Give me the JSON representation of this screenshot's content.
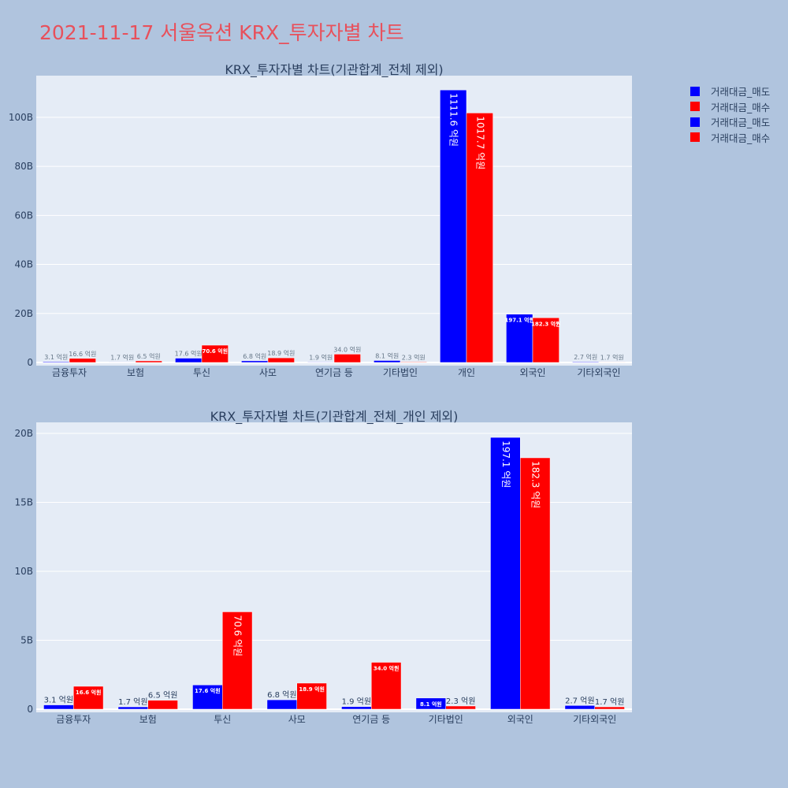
{
  "page": {
    "title": "2021-11-17 서울옥션 KRX_투자자별 차트"
  },
  "legend": {
    "items": [
      {
        "label": "거래대금_매도",
        "color": "#0000ff"
      },
      {
        "label": "거래대금_매수",
        "color": "#ff0000"
      },
      {
        "label": "거래대금_매도",
        "color": "#0000ff"
      },
      {
        "label": "거래대금_매수",
        "color": "#ff0000"
      }
    ]
  },
  "chart_data": [
    {
      "type": "bar",
      "title": "KRX_투자자별 차트(기관합계_전체 제외)",
      "categories": [
        "금융투자",
        "보험",
        "투신",
        "사모",
        "연기금 등",
        "기타법인",
        "개인",
        "외국인",
        "기타외국인"
      ],
      "series": [
        {
          "name": "거래대금_매도",
          "color": "#0000ff",
          "values": [
            0.31,
            0.17,
            1.76,
            0.68,
            0.19,
            0.81,
            111.16,
            19.71,
            0.27
          ],
          "labels": [
            "3.1 억원",
            "1.7 억원",
            "17.6 억원",
            "6.8 억원",
            "1.9 억원",
            "8.1 억원",
            "1111.6 억원",
            "197.1 억원",
            "2.7 억원"
          ]
        },
        {
          "name": "거래대금_매수",
          "color": "#ff0000",
          "values": [
            1.66,
            0.65,
            7.06,
            1.89,
            3.4,
            0.23,
            101.77,
            18.23,
            0.17
          ],
          "labels": [
            "16.6 억원",
            "6.5 억원",
            "70.6 억원",
            "18.9 억원",
            "34.0 억원",
            "2.3 억원",
            "1017.7 억원",
            "182.3 억원",
            "1.7 억원"
          ]
        }
      ],
      "yticks": [
        0,
        20,
        40,
        60,
        80,
        100
      ],
      "ytick_labels": [
        "0",
        "20B",
        "40B",
        "60B",
        "80B",
        "100B"
      ],
      "ylim": [
        0,
        117
      ],
      "grid": true
    },
    {
      "type": "bar",
      "title": "KRX_투자자별 차트(기관합계_전체_개인 제외)",
      "categories": [
        "금융투자",
        "보험",
        "투신",
        "사모",
        "연기금 등",
        "기타법인",
        "외국인",
        "기타외국인"
      ],
      "series": [
        {
          "name": "거래대금_매도",
          "color": "#0000ff",
          "values": [
            0.31,
            0.17,
            1.76,
            0.68,
            0.19,
            0.81,
            19.71,
            0.27
          ],
          "labels": [
            "3.1 억원",
            "1.7 억원",
            "17.6 억원",
            "6.8 억원",
            "1.9 억원",
            "8.1 억원",
            "197.1 억원",
            "2.7 억원"
          ]
        },
        {
          "name": "거래대금_매수",
          "color": "#ff0000",
          "values": [
            1.66,
            0.65,
            7.06,
            1.89,
            3.4,
            0.23,
            18.23,
            0.17
          ],
          "labels": [
            "16.6 억원",
            "6.5 억원",
            "70.6 억원",
            "18.9 억원",
            "34.0 억원",
            "2.3 억원",
            "182.3 억원",
            "1.7 억원"
          ]
        }
      ],
      "yticks": [
        0,
        5,
        10,
        15,
        20
      ],
      "ytick_labels": [
        "0",
        "5B",
        "10B",
        "15B",
        "20B"
      ],
      "ylim": [
        0,
        20.8
      ],
      "grid": true
    }
  ]
}
